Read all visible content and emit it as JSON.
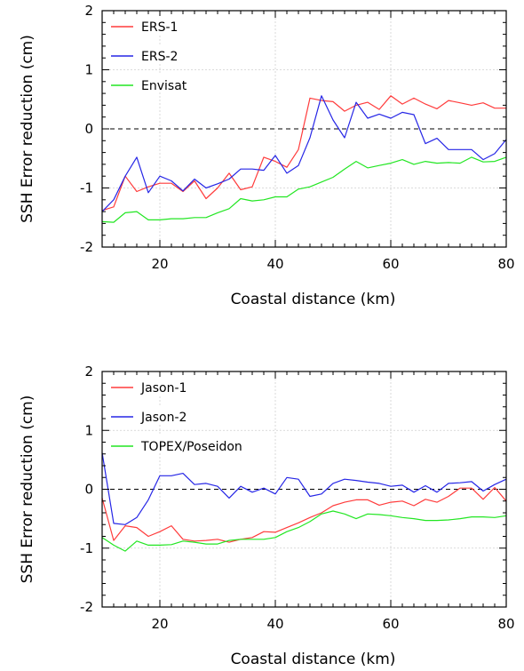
{
  "chart_data": [
    {
      "type": "line",
      "xlabel": "Coastal distance (km)",
      "ylabel": "SSH Error reduction (cm)",
      "xlim": [
        10,
        80
      ],
      "ylim": [
        -2,
        2
      ],
      "xticks": [
        20,
        40,
        60,
        80
      ],
      "yticks": [
        -2,
        -1,
        0,
        1,
        2
      ],
      "grid": true,
      "zero_line": "dashed",
      "legend_position": "top-left",
      "x": [
        10,
        12,
        14,
        16,
        18,
        20,
        22,
        24,
        26,
        28,
        30,
        32,
        34,
        36,
        38,
        40,
        42,
        44,
        46,
        48,
        50,
        52,
        54,
        56,
        58,
        60,
        62,
        64,
        66,
        68,
        70,
        72,
        74,
        76,
        78,
        80
      ],
      "series": [
        {
          "name": "ERS-1",
          "color": "#ff3b3b",
          "values": [
            -1.38,
            -1.32,
            -0.8,
            -1.06,
            -0.98,
            -0.92,
            -0.92,
            -1.06,
            -0.88,
            -1.18,
            -1.0,
            -0.75,
            -1.03,
            -0.98,
            -0.48,
            -0.55,
            -0.65,
            -0.35,
            0.52,
            0.48,
            0.46,
            0.3,
            0.4,
            0.45,
            0.33,
            0.56,
            0.42,
            0.52,
            0.42,
            0.34,
            0.48,
            0.44,
            0.4,
            0.44,
            0.35,
            0.35
          ]
        },
        {
          "name": "ERS-2",
          "color": "#2626e6",
          "values": [
            -1.4,
            -1.2,
            -0.8,
            -0.48,
            -1.08,
            -0.8,
            -0.88,
            -1.05,
            -0.85,
            -1.0,
            -0.93,
            -0.85,
            -0.68,
            -0.68,
            -0.7,
            -0.45,
            -0.75,
            -0.62,
            -0.15,
            0.56,
            0.15,
            -0.15,
            0.45,
            0.18,
            0.25,
            0.18,
            0.28,
            0.24,
            -0.25,
            -0.16,
            -0.35,
            -0.35,
            -0.35,
            -0.52,
            -0.42,
            -0.18
          ]
        },
        {
          "name": "Envisat",
          "color": "#22e622",
          "values": [
            -1.57,
            -1.58,
            -1.42,
            -1.4,
            -1.54,
            -1.54,
            -1.52,
            -1.52,
            -1.5,
            -1.5,
            -1.42,
            -1.35,
            -1.18,
            -1.22,
            -1.2,
            -1.15,
            -1.15,
            -1.02,
            -0.98,
            -0.9,
            -0.82,
            -0.68,
            -0.55,
            -0.66,
            -0.62,
            -0.58,
            -0.52,
            -0.6,
            -0.55,
            -0.58,
            -0.57,
            -0.58,
            -0.48,
            -0.56,
            -0.55,
            -0.48
          ]
        }
      ]
    },
    {
      "type": "line",
      "xlabel": "Coastal distance (km)",
      "ylabel": "SSH Error reduction (cm)",
      "xlim": [
        10,
        80
      ],
      "ylim": [
        -2,
        2
      ],
      "xticks": [
        20,
        40,
        60,
        80
      ],
      "yticks": [
        -2,
        -1,
        0,
        1,
        2
      ],
      "grid": true,
      "zero_line": "dashed",
      "legend_position": "top-left",
      "x": [
        10,
        12,
        14,
        16,
        18,
        20,
        22,
        24,
        26,
        28,
        30,
        32,
        34,
        36,
        38,
        40,
        42,
        44,
        46,
        48,
        50,
        52,
        54,
        56,
        58,
        60,
        62,
        64,
        66,
        68,
        70,
        72,
        74,
        76,
        78,
        80
      ],
      "series": [
        {
          "name": "Jason-1",
          "color": "#ff3b3b",
          "values": [
            -0.15,
            -0.87,
            -0.62,
            -0.65,
            -0.8,
            -0.72,
            -0.62,
            -0.85,
            -0.88,
            -0.87,
            -0.85,
            -0.9,
            -0.85,
            -0.82,
            -0.72,
            -0.73,
            -0.65,
            -0.57,
            -0.48,
            -0.4,
            -0.28,
            -0.22,
            -0.18,
            -0.18,
            -0.27,
            -0.22,
            -0.2,
            -0.28,
            -0.17,
            -0.22,
            -0.12,
            0.02,
            0.02,
            -0.17,
            0.03,
            -0.2
          ]
        },
        {
          "name": "Jason-2",
          "color": "#2626e6",
          "values": [
            0.62,
            -0.58,
            -0.6,
            -0.48,
            -0.18,
            0.23,
            0.23,
            0.27,
            0.08,
            0.1,
            0.05,
            -0.15,
            0.05,
            -0.05,
            0.02,
            -0.08,
            0.2,
            0.17,
            -0.12,
            -0.08,
            0.1,
            0.17,
            0.15,
            0.12,
            0.1,
            0.05,
            0.07,
            -0.05,
            0.06,
            -0.05,
            0.1,
            0.11,
            0.13,
            -0.03,
            0.08,
            0.17
          ]
        },
        {
          "name": "TOPEX/Poseidon",
          "color": "#22e622",
          "values": [
            -0.82,
            -0.95,
            -1.05,
            -0.88,
            -0.95,
            -0.95,
            -0.94,
            -0.88,
            -0.9,
            -0.93,
            -0.93,
            -0.87,
            -0.85,
            -0.85,
            -0.85,
            -0.82,
            -0.72,
            -0.65,
            -0.55,
            -0.42,
            -0.37,
            -0.42,
            -0.5,
            -0.42,
            -0.43,
            -0.45,
            -0.48,
            -0.5,
            -0.53,
            -0.53,
            -0.52,
            -0.5,
            -0.47,
            -0.47,
            -0.48,
            -0.45
          ]
        }
      ]
    }
  ]
}
